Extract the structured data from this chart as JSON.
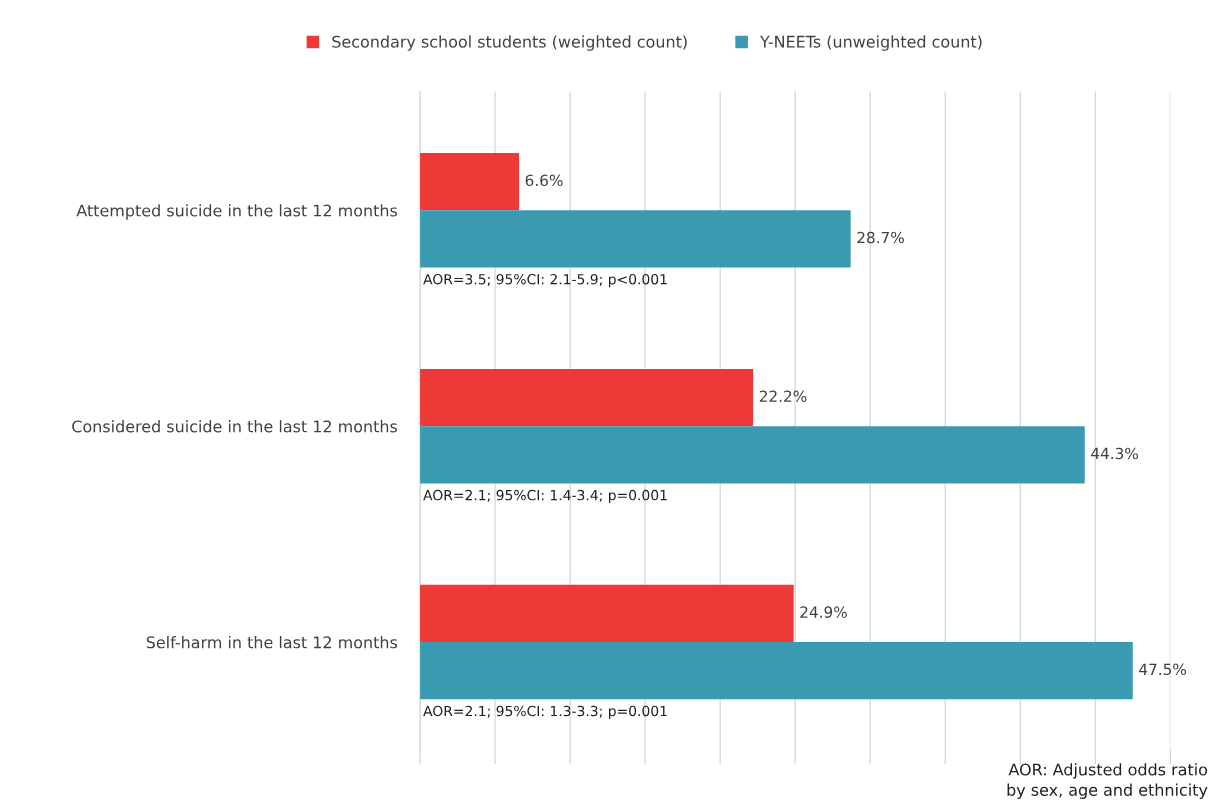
{
  "chart_data": {
    "type": "bar",
    "orientation": "horizontal",
    "categories": [
      "Attempted suicide in the last 12 months",
      "Considered suicide in the last 12 months",
      "Self-harm in the last 12 months"
    ],
    "series": [
      {
        "name": "Secondary school students (weighted count)",
        "color": "#ee3a36",
        "values": [
          6.6,
          22.2,
          24.9
        ],
        "value_labels": [
          "6.6%",
          "22.2%",
          "24.9%"
        ]
      },
      {
        "name": "Y-NEETs (unweighted count)",
        "color": "#3a9ab2",
        "values": [
          28.7,
          44.3,
          47.5
        ],
        "value_labels": [
          "28.7%",
          "44.3%",
          "47.5%"
        ]
      }
    ],
    "xlim": [
      0,
      50
    ],
    "xticks": [
      {
        "value": 0,
        "label": null
      },
      {
        "value": 5,
        "label": null
      },
      {
        "value": 10,
        "label": null
      },
      {
        "value": 15,
        "label": null
      },
      {
        "value": 20,
        "label": null
      },
      {
        "value": 25,
        "label": null
      },
      {
        "value": 30,
        "label": null
      },
      {
        "value": 35,
        "label": null
      },
      {
        "value": 40,
        "label": null
      },
      {
        "value": 45,
        "label": null
      },
      {
        "value": 50,
        "label": null
      }
    ],
    "tick_labels": "y",
    "grid": "x",
    "legend": "top",
    "annotations": [
      "AOR=3.5; 95%CI: 2.1-5.9; p<0.001",
      "AOR=2.1; 95%CI: 1.4-3.4; p=0.001",
      "AOR=2.1; 95%CI: 1.3-3.3; p=0.001",
      "AOR: Adjusted odds ratio\nby sex, age and ethnicity"
    ]
  }
}
